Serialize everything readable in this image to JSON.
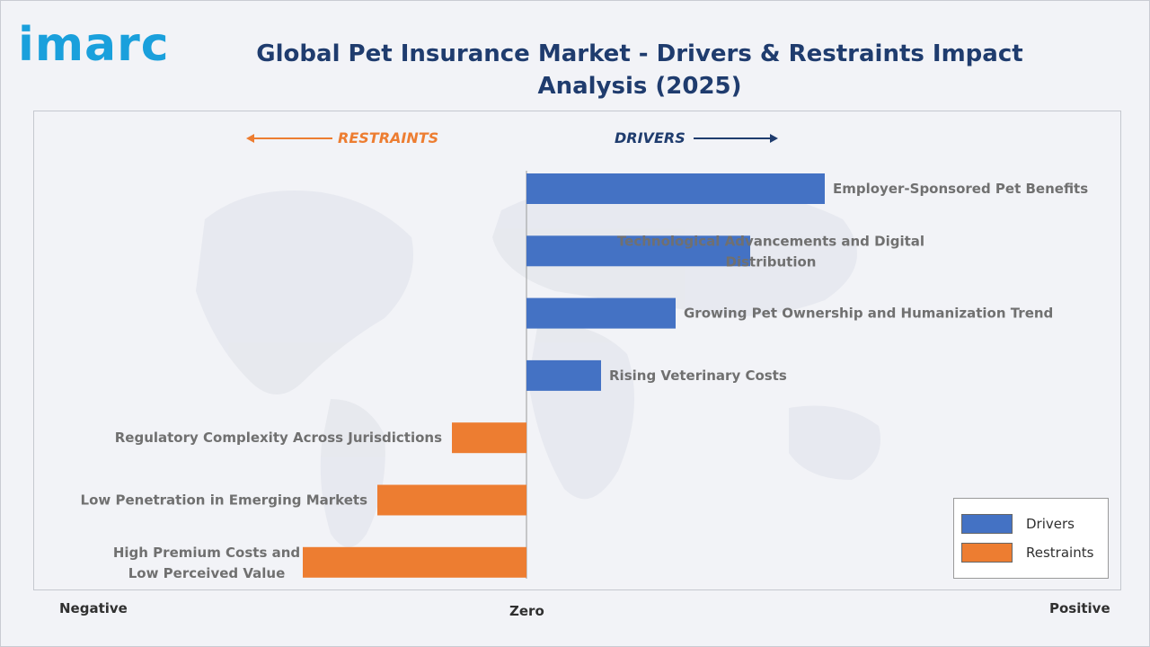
{
  "brand": {
    "logo_text": "imarc"
  },
  "title": "Global Pet Insurance Market - Drivers & Restraints Impact Analysis (2025)",
  "direction_labels": {
    "restraints": "RESTRAINTS",
    "drivers": "DRIVERS"
  },
  "axis_labels": {
    "negative": "Negative",
    "zero": "Zero",
    "positive": "Positive"
  },
  "legend": [
    {
      "label": "Drivers",
      "color": "#4472c4"
    },
    {
      "label": "Restraints",
      "color": "#ed7d31"
    }
  ],
  "colors": {
    "drivers": "#4472c4",
    "restraints": "#ed7d31",
    "title": "#1f3c6e",
    "restraints_arrow": "#ed7d31",
    "drivers_arrow": "#1f3c6e"
  },
  "chart_data": {
    "type": "bar",
    "orientation": "horizontal",
    "xlim": [
      -3,
      4
    ],
    "categories": [
      "Employer-Sponsored Pet Benefits",
      "Technological Advancements and Digital Distribution",
      "Growing Pet Ownership and Humanization Trend",
      "Rising Veterinary Costs",
      "Regulatory Complexity Across Jurisdictions",
      "Low Penetration in Emerging Markets",
      "High Premium Costs and Low Perceived Value"
    ],
    "series": [
      {
        "name": "Drivers",
        "values": [
          4,
          3,
          2,
          1,
          null,
          null,
          null
        ]
      },
      {
        "name": "Restraints",
        "values": [
          null,
          null,
          null,
          null,
          -1,
          -2,
          -3
        ]
      }
    ],
    "legend_position": "bottom-right",
    "grid": false
  }
}
